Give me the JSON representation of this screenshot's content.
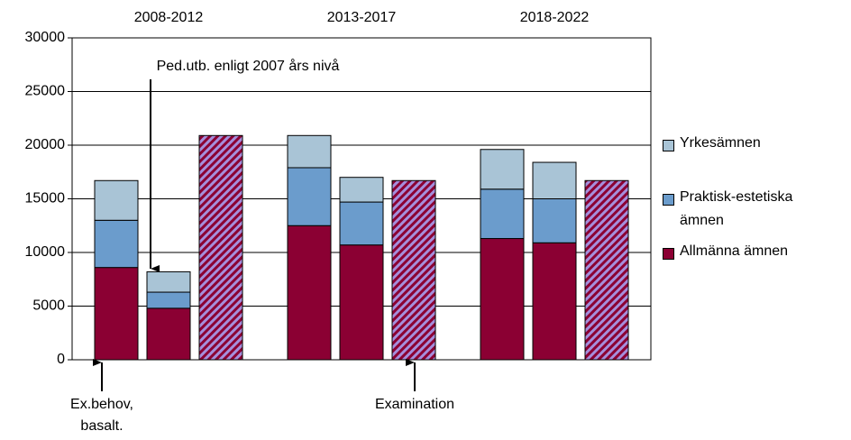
{
  "chart_data": {
    "type": "grouped-stacked-bar",
    "groups": [
      "2008-2012",
      "2013-2017",
      "2018-2022"
    ],
    "series": [
      {
        "name": "Allmänna ämnen",
        "color": "#8b0033",
        "values": [
          [
            8600,
            4800,
            null
          ],
          [
            12500,
            10700,
            null
          ],
          [
            11300,
            10900,
            null
          ]
        ]
      },
      {
        "name": "Praktisk-estetiska ämnen",
        "color": "#6b9ccc",
        "values": [
          [
            4400,
            1500,
            null
          ],
          [
            5400,
            4000,
            null
          ],
          [
            4600,
            4100,
            null
          ]
        ]
      },
      {
        "name": "Yrkesämnen",
        "color": "#a9c4d6",
        "values": [
          [
            3700,
            1900,
            null
          ],
          [
            3000,
            2300,
            null
          ],
          [
            3700,
            3400,
            null
          ]
        ]
      },
      {
        "color": "#8b0033",
        "hatch": "#a58fdc",
        "values": [
          [
            null,
            null,
            20900
          ],
          [
            null,
            null,
            16700
          ],
          [
            null,
            null,
            16700
          ]
        ]
      }
    ],
    "ylim": [
      0,
      30000
    ],
    "yticks": [
      0,
      5000,
      10000,
      15000,
      20000,
      25000,
      30000
    ],
    "grid": true,
    "annotations": [
      {
        "text": "Ped.utb. enligt 2007 års nivå"
      },
      {
        "text": [
          "Ex.behov,",
          "basalt."
        ]
      },
      {
        "text": "Examination"
      }
    ]
  }
}
